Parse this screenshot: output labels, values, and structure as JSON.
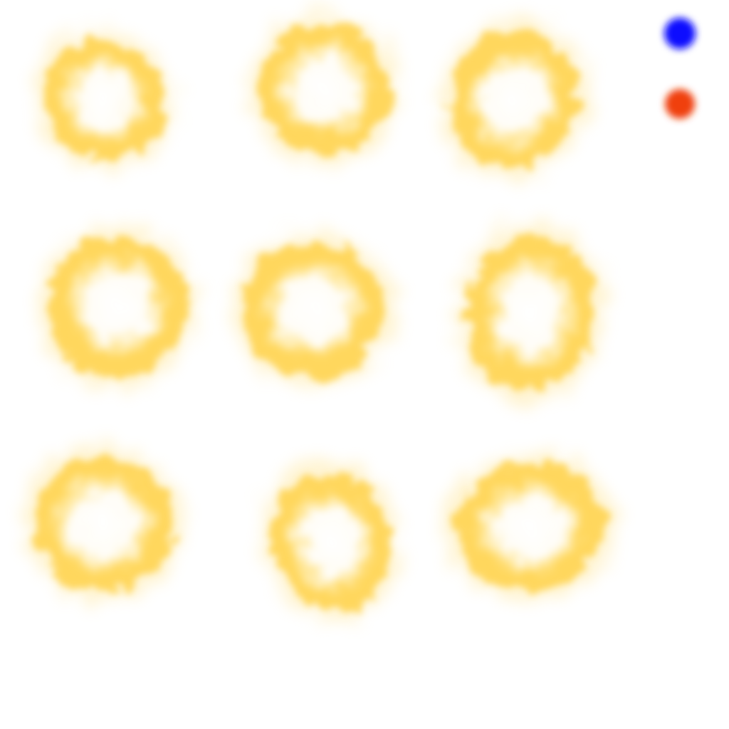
{
  "sprite_sheet": {
    "background_color": "#ffffff",
    "frame_color": "#ffd24a",
    "frame_glow_color": "#ffe080",
    "frame_count": 9,
    "frames": [
      {
        "name": "blob-frame-1"
      },
      {
        "name": "blob-frame-2"
      },
      {
        "name": "blob-frame-3"
      },
      {
        "name": "blob-frame-4"
      },
      {
        "name": "blob-frame-5"
      },
      {
        "name": "blob-frame-6"
      },
      {
        "name": "blob-frame-7"
      },
      {
        "name": "blob-frame-8"
      },
      {
        "name": "blob-frame-9"
      }
    ],
    "markers": [
      {
        "name": "blue-dot-icon",
        "color": "#1010ff"
      },
      {
        "name": "red-dot-icon",
        "color": "#f04010"
      }
    ]
  }
}
